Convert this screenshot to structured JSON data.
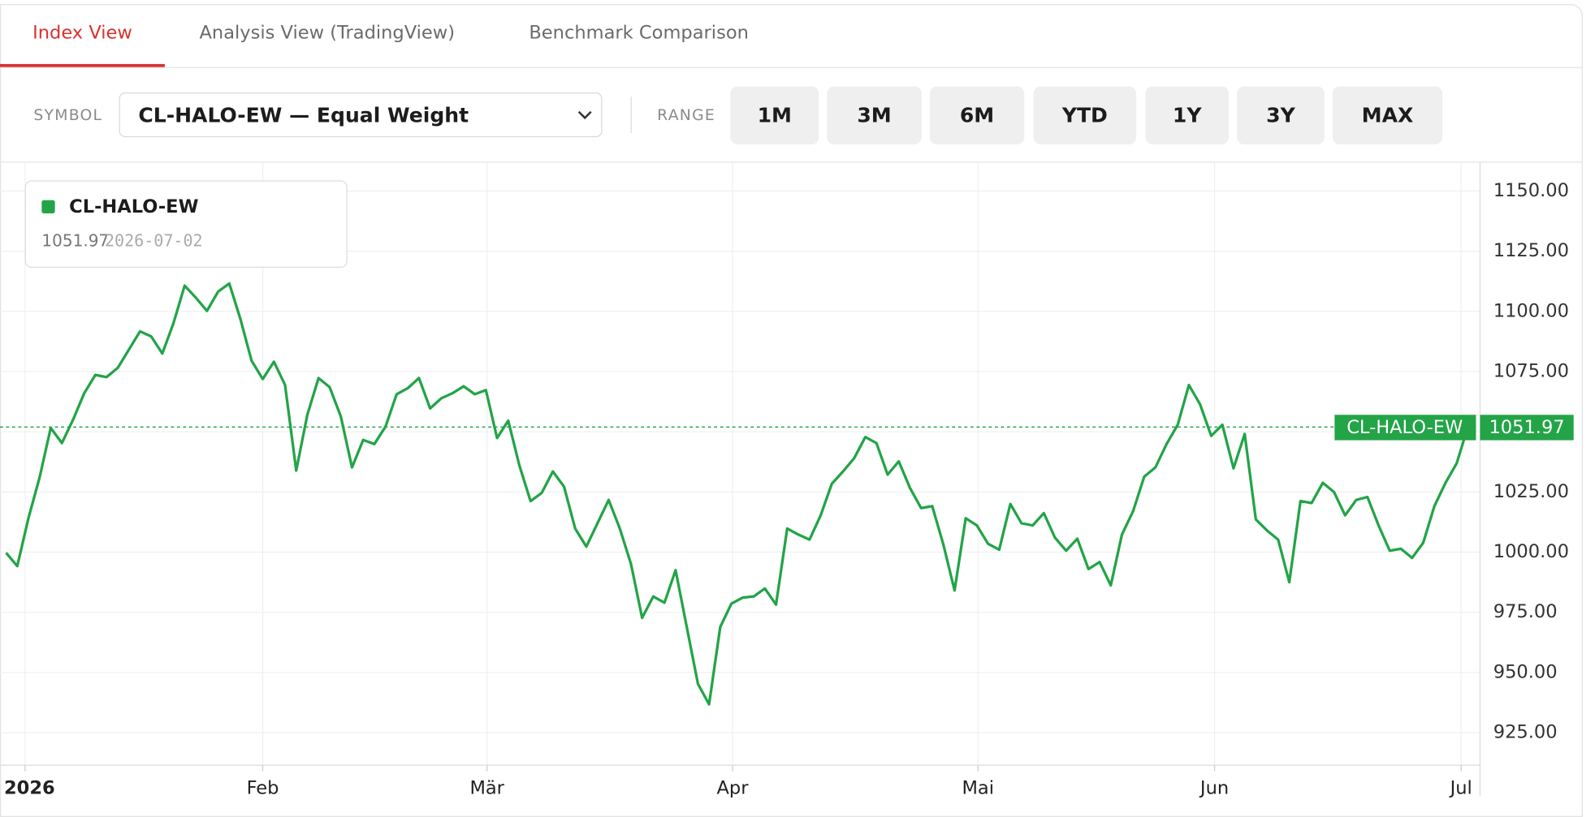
{
  "tabs": [
    {
      "label": "Index View",
      "active": true
    },
    {
      "label": "Analysis View (TradingView)",
      "active": false
    },
    {
      "label": "Benchmark Comparison",
      "active": false
    }
  ],
  "toolbar": {
    "symbol_label": "SYMBOL",
    "symbol": "CL-HALO-EW — Equal Weight",
    "range_label": "RANGE",
    "ranges": [
      "1M",
      "3M",
      "6M",
      "YTD",
      "1Y",
      "3Y",
      "MAX"
    ]
  },
  "chart_data": {
    "type": "line",
    "last_date": "2026-07-02",
    "series": [
      {
        "name": "CL-HALO-EW",
        "color": "#22a447",
        "values": [
          999.7,
          994.2,
          1014.1,
          1031.0,
          1051.6,
          1045.3,
          1055.0,
          1066.0,
          1073.6,
          1072.7,
          1076.5,
          1084.1,
          1091.7,
          1089.6,
          1082.5,
          1095.1,
          1110.7,
          1105.7,
          1100.2,
          1108.2,
          1111.6,
          1096.8,
          1079.5,
          1071.9,
          1079.1,
          1069.4,
          1033.9,
          1057.1,
          1072.3,
          1068.5,
          1056.3,
          1035.2,
          1046.6,
          1044.9,
          1052.1,
          1065.6,
          1068.1,
          1072.3,
          1059.7,
          1063.9,
          1066.0,
          1068.9,
          1065.6,
          1067.3,
          1047.4,
          1054.6,
          1036.0,
          1021.2,
          1024.6,
          1033.5,
          1027.2,
          1009.8,
          1002.3,
          1012.0,
          1021.7,
          1009.8,
          995.1,
          972.7,
          981.6,
          979.0,
          992.5,
          968.9,
          945.3,
          936.8,
          968.9,
          978.6,
          981.1,
          981.6,
          984.9,
          978.2,
          1009.8,
          1007.3,
          1005.2,
          1015.3,
          1028.4,
          1033.5,
          1039.0,
          1047.8,
          1045.3,
          1032.2,
          1037.7,
          1026.7,
          1018.3,
          1019.1,
          1003.1,
          984.1,
          1014.1,
          1011.1,
          1003.5,
          1001.0,
          1020.0,
          1012.0,
          1011.1,
          1016.2,
          1006.0,
          1000.6,
          1005.6,
          993.0,
          995.9,
          986.2,
          1007.3,
          1017.0,
          1031.4,
          1035.2,
          1044.9,
          1052.9,
          1069.4,
          1061.4,
          1048.3,
          1052.9,
          1034.8,
          1049.1,
          1013.6,
          1009.0,
          1005.2,
          987.5,
          1021.2,
          1020.4,
          1028.8,
          1025.0,
          1015.3,
          1021.7,
          1022.9,
          1011.1,
          1000.6,
          1001.4,
          997.6,
          1003.9,
          1019.1,
          1028.8,
          1036.9,
          1051.97
        ]
      }
    ],
    "xlim": [
      0,
      131
    ],
    "xticks": [
      {
        "value": 1.7,
        "label": "2026"
      },
      {
        "value": 23.0,
        "label": "Feb"
      },
      {
        "value": 43.1,
        "label": "Mär"
      },
      {
        "value": 65.1,
        "label": "Apr"
      },
      {
        "value": 87.1,
        "label": "Mai"
      },
      {
        "value": 108.3,
        "label": "Jun"
      },
      {
        "value": 130.4,
        "label": "Jul"
      }
    ],
    "ylim": [
      911.5,
      1161.8
    ],
    "yticks": [
      {
        "value": 925,
        "label": "925.00"
      },
      {
        "value": 950,
        "label": "950.00"
      },
      {
        "value": 975,
        "label": "975.00"
      },
      {
        "value": 1000,
        "label": "1000.00"
      },
      {
        "value": 1025,
        "label": "1025.00"
      },
      {
        "value": 1050,
        "label": "1050.00"
      },
      {
        "value": 1075,
        "label": "1075.00"
      },
      {
        "value": 1100,
        "label": "1100.00"
      },
      {
        "value": 1125,
        "label": "1125.00"
      },
      {
        "value": 1150,
        "label": "1150.00"
      }
    ],
    "grid": true
  }
}
